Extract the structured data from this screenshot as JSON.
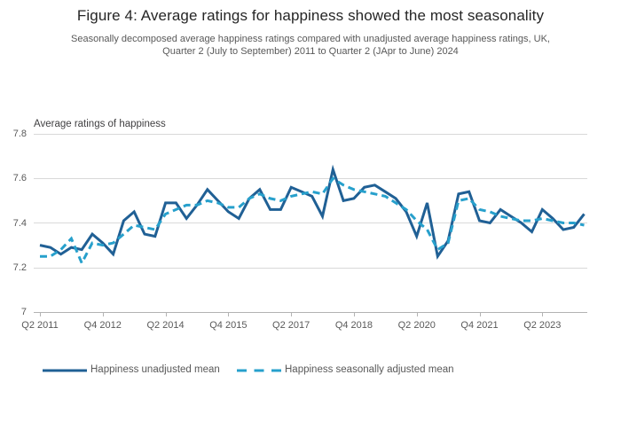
{
  "figure": {
    "title": "Figure 4: Average ratings for happiness showed the most seasonality",
    "subtitle_line1": "Seasonally decomposed average happiness ratings compared with unadjusted average happiness ratings, UK,",
    "subtitle_line2": "Quarter 2 (July to September) 2011 to Quarter 2 (JApr to June) 2024"
  },
  "colors": {
    "unadjusted": "#206095",
    "seasonally_adjusted": "#27A0CC",
    "grid": "#d9d9d9",
    "axis": "#b3b3b3",
    "tick": "#b3b3b3"
  },
  "legend": {
    "unadjusted_label": "Happiness unadjusted mean",
    "seasonally_adjusted_label": "Happiness seasonally adjusted mean"
  },
  "chart_data": {
    "type": "line",
    "title": "Average ratings of happiness",
    "xlabel": "",
    "ylabel": "Average ratings of happiness",
    "ylim": [
      7.0,
      7.8
    ],
    "y_ticks": [
      7.8,
      7.6,
      7.4,
      7.2,
      7
    ],
    "y_tick_labels": [
      "7.8",
      "7.6",
      "7.4",
      "7.2",
      "7"
    ],
    "x_tick_labels": [
      "Q2 2011",
      "Q4 2012",
      "Q2 2014",
      "Q4 2015",
      "Q2 2017",
      "Q4 2018",
      "Q2 2020",
      "Q4 2021",
      "Q2 2023"
    ],
    "x_tick_indices": [
      0,
      6,
      12,
      18,
      24,
      30,
      36,
      42,
      48
    ],
    "grid": "horizontal",
    "legend_position": "bottom",
    "categories": [
      "Q2 2011",
      "Q3 2011",
      "Q4 2011",
      "Q1 2012",
      "Q2 2012",
      "Q3 2012",
      "Q4 2012",
      "Q1 2013",
      "Q2 2013",
      "Q3 2013",
      "Q4 2013",
      "Q1 2014",
      "Q2 2014",
      "Q3 2014",
      "Q4 2014",
      "Q1 2015",
      "Q2 2015",
      "Q3 2015",
      "Q4 2015",
      "Q1 2016",
      "Q2 2016",
      "Q3 2016",
      "Q4 2016",
      "Q1 2017",
      "Q2 2017",
      "Q3 2017",
      "Q4 2017",
      "Q1 2018",
      "Q2 2018",
      "Q3 2018",
      "Q4 2018",
      "Q1 2019",
      "Q2 2019",
      "Q3 2019",
      "Q4 2019",
      "Q1 2020",
      "Q2 2020",
      "Q3 2020",
      "Q4 2020",
      "Q1 2021",
      "Q2 2021",
      "Q3 2021",
      "Q4 2021",
      "Q1 2022",
      "Q2 2022",
      "Q3 2022",
      "Q4 2022",
      "Q1 2023",
      "Q2 2023",
      "Q3 2023",
      "Q4 2023",
      "Q1 2024",
      "Q2 2024"
    ],
    "series": [
      {
        "name": "Happiness unadjusted mean",
        "style": "solid",
        "values": [
          7.3,
          7.29,
          7.26,
          7.29,
          7.28,
          7.35,
          7.31,
          7.26,
          7.41,
          7.45,
          7.35,
          7.34,
          7.49,
          7.49,
          7.42,
          7.48,
          7.55,
          7.5,
          7.45,
          7.42,
          7.51,
          7.55,
          7.46,
          7.46,
          7.56,
          7.54,
          7.52,
          7.43,
          7.64,
          7.5,
          7.51,
          7.56,
          7.57,
          7.54,
          7.51,
          7.45,
          7.34,
          7.49,
          7.25,
          7.32,
          7.53,
          7.54,
          7.41,
          7.4,
          7.46,
          7.43,
          7.4,
          7.36,
          7.46,
          7.42,
          7.37,
          7.38,
          7.44
        ]
      },
      {
        "name": "Happiness seasonally adjusted mean",
        "style": "dashed",
        "values": [
          7.25,
          7.25,
          7.28,
          7.33,
          7.22,
          7.31,
          7.3,
          7.31,
          7.35,
          7.39,
          7.38,
          7.37,
          7.44,
          7.46,
          7.48,
          7.48,
          7.5,
          7.49,
          7.47,
          7.47,
          7.51,
          7.53,
          7.51,
          7.5,
          7.52,
          7.53,
          7.54,
          7.53,
          7.6,
          7.57,
          7.55,
          7.54,
          7.53,
          7.52,
          7.49,
          7.46,
          7.41,
          7.37,
          7.28,
          7.31,
          7.5,
          7.51,
          7.46,
          7.45,
          7.43,
          7.42,
          7.41,
          7.41,
          7.42,
          7.41,
          7.4,
          7.4,
          7.39
        ]
      }
    ]
  }
}
